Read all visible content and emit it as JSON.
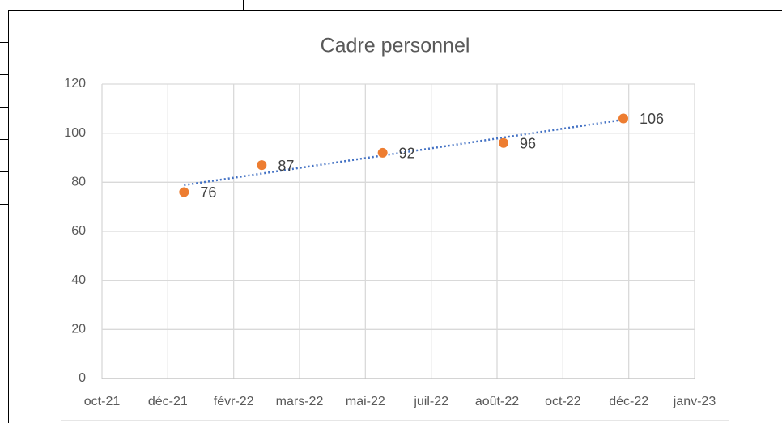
{
  "chart_data": {
    "type": "scatter",
    "title": "Cadre personnel",
    "x": [
      44546,
      44618,
      44730,
      44842,
      44953
    ],
    "values": [
      76,
      87,
      92,
      96,
      106
    ],
    "color": "#ed7d31",
    "trendline": "linear",
    "trendline_color": "#4472c4",
    "xlim": [
      44470,
      45019
    ],
    "xticks": [
      {
        "value": 44470,
        "label": "oct-21"
      },
      {
        "value": 44531,
        "label": "déc-21"
      },
      {
        "value": 44592,
        "label": "févr-22"
      },
      {
        "value": 44653,
        "label": "mars-22"
      },
      {
        "value": 44714,
        "label": "mai-22"
      },
      {
        "value": 44775,
        "label": "juil-22"
      },
      {
        "value": 44836,
        "label": "août-22"
      },
      {
        "value": 44897,
        "label": "oct-22"
      },
      {
        "value": 44958,
        "label": "déc-22"
      },
      {
        "value": 45019,
        "label": "janv-23"
      }
    ],
    "ylim": [
      0,
      120
    ],
    "yticks": [
      0,
      20,
      40,
      60,
      80,
      100,
      120
    ],
    "grid": true
  }
}
